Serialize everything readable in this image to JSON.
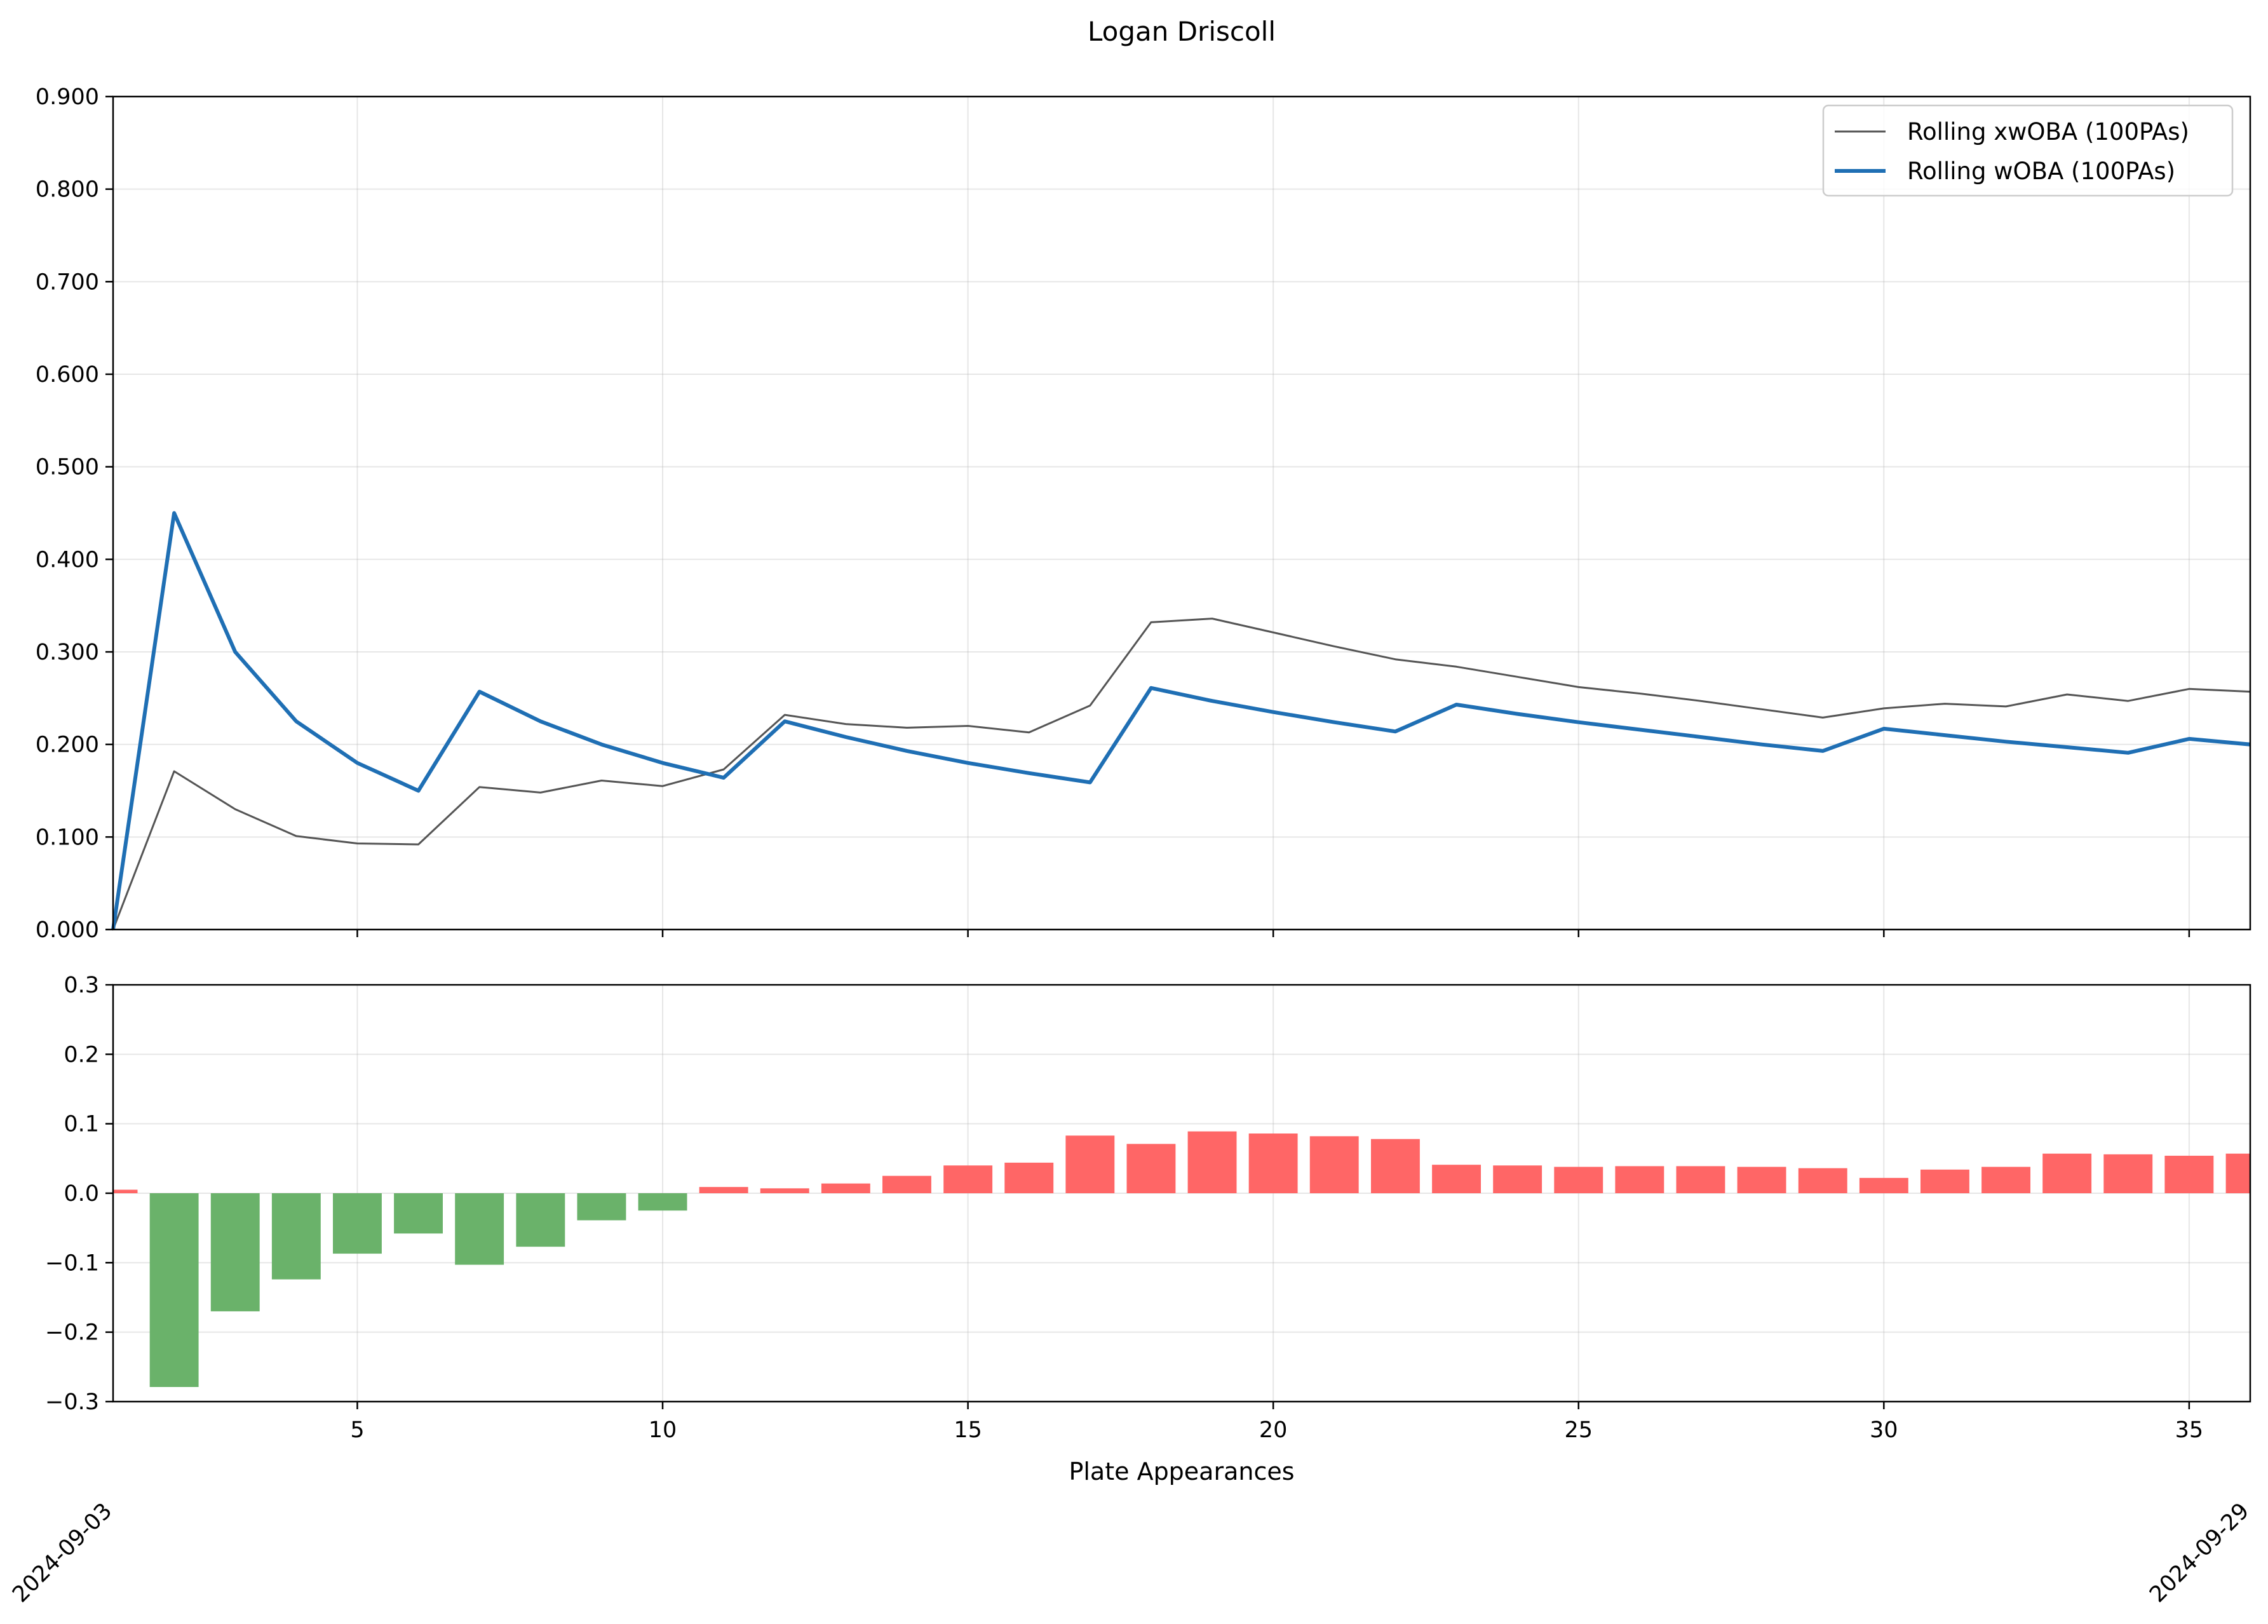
{
  "chart_data": {
    "title": "Logan Driscoll",
    "top": {
      "type": "line",
      "ylim": [
        0,
        0.9
      ],
      "yticks": [
        "0.000",
        "0.100",
        "0.200",
        "0.300",
        "0.400",
        "0.500",
        "0.600",
        "0.700",
        "0.800",
        "0.900"
      ],
      "legend_placement": "top-right",
      "grid": true,
      "series": [
        {
          "name": "Rolling xwOBA (100PAs)",
          "color": "#555555",
          "x": [
            1,
            2,
            3,
            4,
            5,
            6,
            7,
            8,
            9,
            10,
            11,
            12,
            13,
            14,
            15,
            16,
            17,
            18,
            19,
            20,
            21,
            22,
            23,
            24,
            25,
            26,
            27,
            28,
            29,
            30,
            31,
            32,
            33,
            34,
            35,
            36
          ],
          "values": [
            0.0,
            0.171,
            0.13,
            0.101,
            0.093,
            0.092,
            0.154,
            0.148,
            0.161,
            0.155,
            0.173,
            0.232,
            0.222,
            0.218,
            0.22,
            0.213,
            0.242,
            0.332,
            0.336,
            0.321,
            0.306,
            0.292,
            0.284,
            0.273,
            0.262,
            0.255,
            0.247,
            0.238,
            0.229,
            0.239,
            0.244,
            0.241,
            0.254,
            0.247,
            0.26,
            0.257
          ]
        },
        {
          "name": "Rolling wOBA (100PAs)",
          "color": "#1f6fb4",
          "x": [
            1,
            2,
            3,
            4,
            5,
            6,
            7,
            8,
            9,
            10,
            11,
            12,
            13,
            14,
            15,
            16,
            17,
            18,
            19,
            20,
            21,
            22,
            23,
            24,
            25,
            26,
            27,
            28,
            29,
            30,
            31,
            32,
            33,
            34,
            35,
            36
          ],
          "values": [
            0.0,
            0.45,
            0.3,
            0.225,
            0.18,
            0.15,
            0.257,
            0.225,
            0.2,
            0.18,
            0.164,
            0.225,
            0.208,
            0.193,
            0.18,
            0.169,
            0.159,
            0.261,
            0.247,
            0.235,
            0.224,
            0.214,
            0.243,
            0.233,
            0.224,
            0.216,
            0.208,
            0.2,
            0.193,
            0.217,
            0.21,
            0.203,
            0.197,
            0.191,
            0.206,
            0.2
          ]
        }
      ]
    },
    "bottom": {
      "type": "bar",
      "ylim": [
        -0.3,
        0.3
      ],
      "yticks": [
        "0.3",
        "0.2",
        "0.1",
        "0.0",
        "−0.1",
        "−0.2",
        "−0.3"
      ],
      "grid": true,
      "positive_color": "#ff6666",
      "negative_color": "#6ab26a",
      "x": [
        1,
        2,
        3,
        4,
        5,
        6,
        7,
        8,
        9,
        10,
        11,
        12,
        13,
        14,
        15,
        16,
        17,
        18,
        19,
        20,
        21,
        22,
        23,
        24,
        25,
        26,
        27,
        28,
        29,
        30,
        31,
        32,
        33,
        34,
        35,
        36
      ],
      "values": [
        0.005,
        -0.279,
        -0.17,
        -0.124,
        -0.087,
        -0.058,
        -0.103,
        -0.077,
        -0.039,
        -0.025,
        0.009,
        0.007,
        0.014,
        0.025,
        0.04,
        0.044,
        0.083,
        0.071,
        0.089,
        0.086,
        0.082,
        0.078,
        0.041,
        0.04,
        0.038,
        0.039,
        0.039,
        0.038,
        0.036,
        0.022,
        0.034,
        0.038,
        0.057,
        0.056,
        0.054,
        0.057
      ]
    },
    "xaxis": {
      "xlim": [
        1,
        36
      ],
      "ticks": [
        5,
        10,
        15,
        20,
        25,
        30,
        35
      ],
      "xlabel": "Plate Appearances",
      "date_labels": [
        "2024-09-03",
        "2024-09-29"
      ]
    }
  }
}
